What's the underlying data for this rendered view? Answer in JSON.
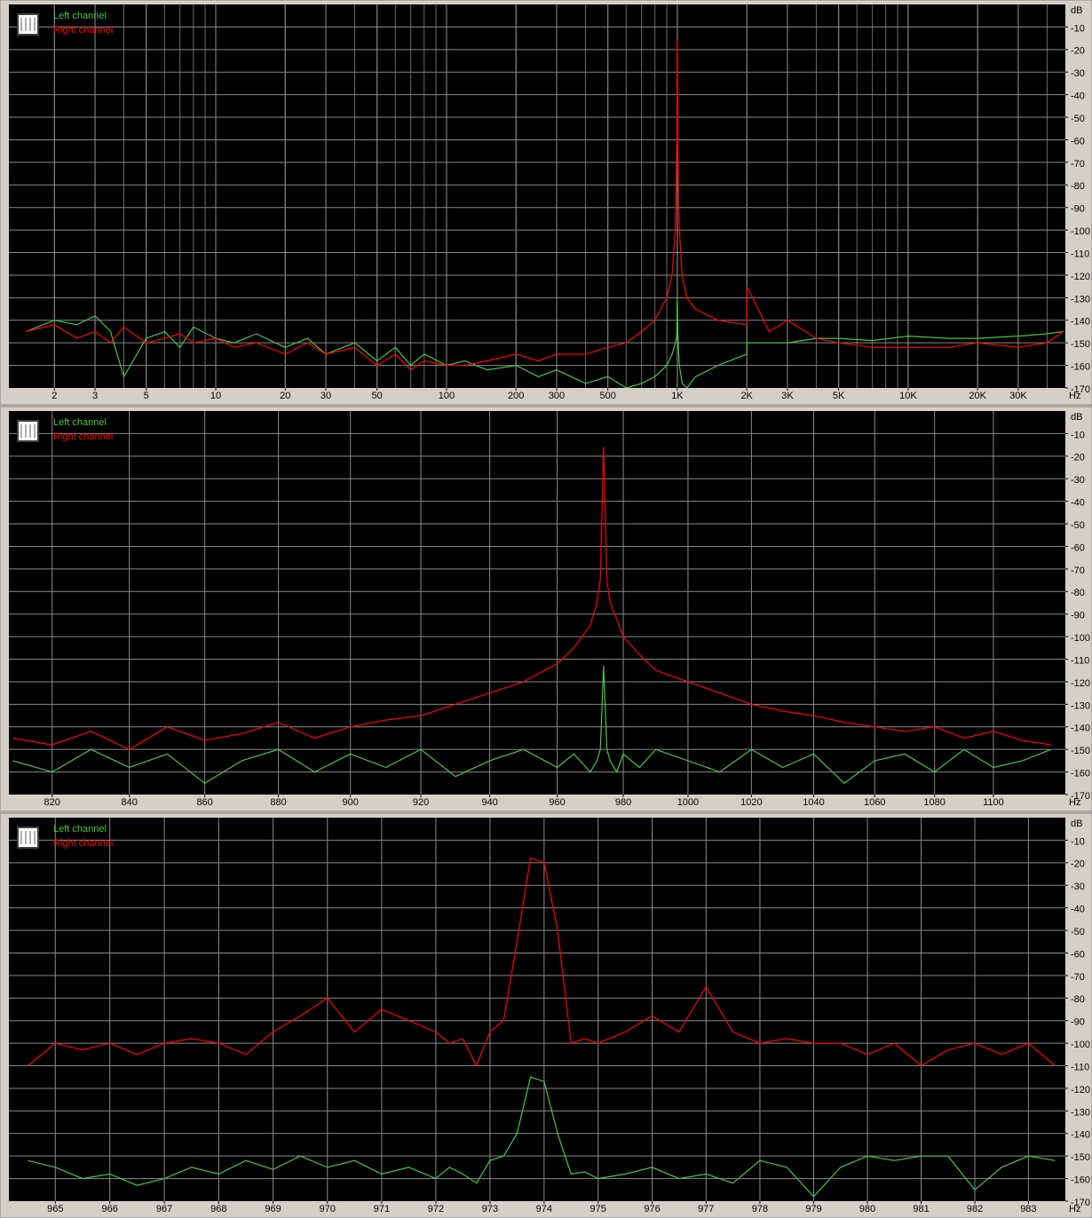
{
  "chart_data": [
    {
      "type": "line",
      "x_scale": "log",
      "y_unit": "dB",
      "x_unit": "Hz",
      "grid": true,
      "minor_grid": true,
      "xlim": [
        1.27,
        48000
      ],
      "ylim": [
        -170,
        0
      ],
      "xticks": [
        2,
        3,
        5,
        10,
        20,
        30,
        50,
        100,
        200,
        300,
        500,
        {
          "value": 1000,
          "label": "1K"
        },
        {
          "value": 2000,
          "label": "2K"
        },
        {
          "value": 3000,
          "label": "3K"
        },
        {
          "value": 5000,
          "label": "5K"
        },
        {
          "value": 10000,
          "label": "10K"
        },
        {
          "value": 20000,
          "label": "20K"
        },
        {
          "value": 30000,
          "label": "30K"
        }
      ],
      "yticks": [
        -10,
        -20,
        -30,
        -40,
        -50,
        -60,
        -70,
        -80,
        -90,
        -100,
        -110,
        -120,
        -130,
        -140,
        -150,
        -160,
        -170
      ],
      "x": [
        1.5,
        2,
        2.5,
        3,
        3.5,
        4,
        5,
        6,
        7,
        8,
        10,
        12,
        15,
        20,
        25,
        30,
        40,
        50,
        60,
        70,
        80,
        100,
        120,
        150,
        200,
        250,
        300,
        400,
        500,
        600,
        700,
        800,
        900,
        950,
        980,
        990,
        995,
        1000,
        1005,
        1010,
        1020,
        1050,
        1100,
        1200,
        1500,
        2000,
        2005,
        2500,
        3000,
        4000,
        5000,
        7000,
        10000,
        15000,
        20000,
        30000,
        40000,
        47000
      ],
      "series": [
        {
          "name": "Left channel",
          "color": "#40c840",
          "values": [
            -145,
            -140,
            -142,
            -138,
            -145,
            -165,
            -148,
            -145,
            -152,
            -143,
            -148,
            -150,
            -146,
            -152,
            -148,
            -155,
            -150,
            -158,
            -152,
            -160,
            -155,
            -160,
            -158,
            -162,
            -160,
            -165,
            -162,
            -168,
            -165,
            -170,
            -168,
            -165,
            -160,
            -155,
            -150,
            -148,
            -145,
            -130,
            -145,
            -150,
            -160,
            -168,
            -170,
            -165,
            -160,
            -155,
            -150,
            -150,
            -150,
            -148,
            -148,
            -149,
            -147,
            -148,
            -148,
            -147,
            -146,
            -145
          ]
        },
        {
          "name": "Right channel",
          "color": "#ff0000",
          "values": [
            -145,
            -142,
            -148,
            -145,
            -150,
            -143,
            -150,
            -148,
            -146,
            -150,
            -148,
            -152,
            -150,
            -155,
            -150,
            -155,
            -152,
            -160,
            -155,
            -162,
            -158,
            -160,
            -160,
            -158,
            -155,
            -158,
            -155,
            -155,
            -152,
            -150,
            -145,
            -140,
            -130,
            -120,
            -100,
            -80,
            -60,
            -16,
            -60,
            -80,
            -100,
            -120,
            -130,
            -135,
            -140,
            -142,
            -125,
            -145,
            -140,
            -148,
            -150,
            -152,
            -152,
            -152,
            -150,
            -152,
            -150,
            -145
          ]
        }
      ]
    },
    {
      "type": "line",
      "x_scale": "log",
      "y_unit": "dB",
      "x_unit": "Hz",
      "grid": true,
      "minor_grid": false,
      "xlim": [
        809,
        1125
      ],
      "ylim": [
        -170,
        0
      ],
      "xticks": [
        820,
        840,
        860,
        880,
        900,
        920,
        940,
        960,
        980,
        1000,
        1020,
        1040,
        1060,
        1080,
        1100
      ],
      "yticks": [
        -10,
        -20,
        -30,
        -40,
        -50,
        -60,
        -70,
        -80,
        -90,
        -100,
        -110,
        -120,
        -130,
        -140,
        -150,
        -160,
        -170
      ],
      "x": [
        810,
        820,
        830,
        840,
        850,
        860,
        870,
        880,
        890,
        900,
        910,
        920,
        930,
        940,
        950,
        960,
        965,
        970,
        972,
        973,
        974,
        975,
        976,
        978,
        980,
        985,
        990,
        1000,
        1010,
        1020,
        1030,
        1040,
        1050,
        1060,
        1070,
        1080,
        1090,
        1100,
        1110,
        1120
      ],
      "series": [
        {
          "name": "Left channel",
          "color": "#40c840",
          "values": [
            -155,
            -160,
            -150,
            -158,
            -152,
            -165,
            -155,
            -150,
            -160,
            -152,
            -158,
            -150,
            -162,
            -155,
            -150,
            -158,
            -152,
            -160,
            -155,
            -150,
            -113,
            -150,
            -155,
            -160,
            -152,
            -158,
            -150,
            -155,
            -160,
            -150,
            -158,
            -152,
            -165,
            -155,
            -152,
            -160,
            -150,
            -158,
            -155,
            -150
          ]
        },
        {
          "name": "Right channel",
          "color": "#ff0000",
          "values": [
            -145,
            -148,
            -142,
            -150,
            -140,
            -146,
            -143,
            -138,
            -145,
            -140,
            -137,
            -135,
            -130,
            -125,
            -120,
            -112,
            -105,
            -95,
            -85,
            -75,
            -16,
            -75,
            -85,
            -92,
            -100,
            -108,
            -115,
            -120,
            -125,
            -130,
            -133,
            -135,
            -138,
            -140,
            -142,
            -140,
            -145,
            -142,
            -146,
            -148
          ]
        }
      ]
    },
    {
      "type": "line",
      "x_scale": "log",
      "y_unit": "dB",
      "x_unit": "Hz",
      "grid": true,
      "minor_grid": false,
      "xlim": [
        964.15,
        983.69
      ],
      "ylim": [
        -170,
        0
      ],
      "xticks": [
        965,
        966,
        967,
        968,
        969,
        970,
        971,
        972,
        973,
        974,
        975,
        976,
        977,
        978,
        979,
        980,
        981,
        982,
        983
      ],
      "yticks": [
        -10,
        -20,
        -30,
        -40,
        -50,
        -60,
        -70,
        -80,
        -90,
        -100,
        -110,
        -120,
        -130,
        -140,
        -150,
        -160,
        -170
      ],
      "x": [
        964.5,
        965,
        965.5,
        966,
        966.5,
        967,
        967.5,
        968,
        968.5,
        969,
        969.5,
        970,
        970.5,
        971,
        971.5,
        972,
        972.25,
        972.5,
        972.75,
        973,
        973.25,
        973.5,
        973.75,
        974,
        974.25,
        974.5,
        974.75,
        975,
        975.5,
        976,
        976.5,
        977,
        977.5,
        978,
        978.5,
        979,
        979.5,
        980,
        980.5,
        981,
        981.5,
        982,
        982.5,
        983,
        983.5
      ],
      "series": [
        {
          "name": "Left channel",
          "color": "#40c840",
          "values": [
            -152,
            -155,
            -160,
            -158,
            -163,
            -160,
            -155,
            -158,
            -152,
            -156,
            -150,
            -155,
            -152,
            -158,
            -155,
            -160,
            -155,
            -158,
            -162,
            -152,
            -150,
            -140,
            -115,
            -117,
            -140,
            -158,
            -157,
            -160,
            -158,
            -155,
            -160,
            -158,
            -162,
            -152,
            -155,
            -168,
            -155,
            -150,
            -152,
            -150,
            -150,
            -165,
            -155,
            -150,
            -152
          ]
        },
        {
          "name": "Right channel",
          "color": "#ff0000",
          "values": [
            -110,
            -100,
            -103,
            -100,
            -105,
            -100,
            -98,
            -100,
            -105,
            -95,
            -88,
            -80,
            -95,
            -85,
            -90,
            -95,
            -100,
            -98,
            -110,
            -95,
            -90,
            -55,
            -18,
            -20,
            -50,
            -100,
            -98,
            -100,
            -95,
            -88,
            -95,
            -75,
            -95,
            -100,
            -98,
            -100,
            -100,
            -105,
            -100,
            -110,
            -103,
            -100,
            -105,
            -100,
            -110
          ]
        }
      ]
    }
  ]
}
